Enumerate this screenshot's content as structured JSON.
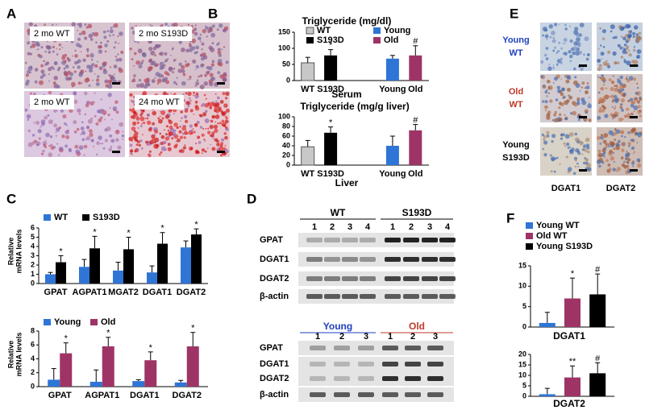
{
  "panel_labels": [
    "A",
    "B",
    "C",
    "D",
    "E",
    "F"
  ],
  "panel_a": {
    "tiles": [
      "2 mo WT",
      "2 mo S193D",
      "2 mo WT",
      "24 mo WT"
    ]
  },
  "panel_d": {
    "blots": [
      {
        "groups": [
          "WT",
          "S193D"
        ],
        "lanes": [
          "1",
          "2",
          "3",
          "4",
          "1",
          "2",
          "3",
          "4"
        ],
        "rows": [
          "GPAT",
          "DGAT1",
          "DGAT2",
          "β-actin"
        ]
      },
      {
        "groups": [
          "Young",
          "Old"
        ],
        "lanes": [
          "1",
          "2",
          "3",
          "1",
          "2",
          "3"
        ],
        "rows": [
          "GPAT",
          "DGAT1",
          "DGAT2",
          "β-actin"
        ]
      }
    ]
  },
  "panel_e": {
    "rows": [
      [
        "Young",
        "WT"
      ],
      [
        "Old",
        "WT"
      ],
      [
        "Young",
        "S193D"
      ]
    ],
    "columns": [
      "DGAT1",
      "DGAT2"
    ]
  },
  "chart_data": [
    {
      "type": "bar",
      "title": "Triglyceride (mg/dl)",
      "xlabel": "Serum",
      "categories": [
        "WT",
        "S193D",
        "Young",
        "Old"
      ],
      "values": [
        55,
        78,
        68,
        78
      ],
      "errors": [
        17,
        18,
        10,
        30
      ],
      "colors": [
        "#c8c8c8",
        "#000000",
        "#2e75d6",
        "#9e3465"
      ],
      "annotations": [
        null,
        "*",
        null,
        "#"
      ],
      "ylim": [
        0,
        150
      ],
      "yticks": [
        0,
        50,
        100,
        150
      ]
    },
    {
      "type": "bar",
      "title": "Triglyceride (mg/g liver)",
      "xlabel": "Liver",
      "categories": [
        "WT",
        "S193D",
        "Young",
        "Old"
      ],
      "values": [
        38,
        67,
        40,
        72
      ],
      "errors": [
        13,
        12,
        20,
        12
      ],
      "colors": [
        "#c8c8c8",
        "#000000",
        "#2e75d6",
        "#9e3465"
      ],
      "annotations": [
        null,
        "*",
        null,
        "#"
      ],
      "ylim": [
        0,
        100
      ],
      "yticks": [
        0,
        20,
        40,
        60,
        80,
        100
      ]
    },
    {
      "type": "bar",
      "ylabel": [
        "Relative",
        "mRNA levels"
      ],
      "categories": [
        "GPAT",
        "AGPAT1",
        "MGAT2",
        "DGAT1",
        "DGAT2"
      ],
      "series": [
        {
          "name": "WT",
          "color": "#2e75d6",
          "values": [
            1.0,
            1.8,
            1.4,
            1.2,
            3.9
          ],
          "errors": [
            0.2,
            0.8,
            0.9,
            0.7,
            0.7
          ]
        },
        {
          "name": "S193D",
          "color": "#000000",
          "values": [
            2.3,
            3.8,
            3.7,
            4.3,
            5.3
          ],
          "errors": [
            0.7,
            1.3,
            1.3,
            1.2,
            0.6
          ],
          "annotations": [
            "*",
            "*",
            "*",
            "*",
            "*"
          ]
        }
      ],
      "ylim": [
        0,
        6
      ],
      "yticks": [
        0,
        1,
        2,
        3,
        4,
        5,
        6
      ]
    },
    {
      "type": "bar",
      "ylabel": [
        "Relative",
        "mRNA levels"
      ],
      "categories": [
        "GPAT",
        "AGPAT1",
        "DGAT1",
        "DGAT2"
      ],
      "series": [
        {
          "name": "Young",
          "color": "#2e75d6",
          "values": [
            1.0,
            0.7,
            0.8,
            0.6
          ],
          "errors": [
            1.6,
            1.7,
            0.2,
            0.3
          ]
        },
        {
          "name": "Old",
          "color": "#9e3465",
          "values": [
            4.8,
            5.8,
            3.8,
            5.8
          ],
          "errors": [
            1.5,
            1.3,
            1.2,
            2.0
          ],
          "annotations": [
            "*",
            "*",
            "*",
            "*"
          ]
        }
      ],
      "ylim": [
        0,
        8
      ],
      "yticks": [
        0,
        2,
        4,
        6,
        8
      ]
    },
    {
      "type": "bar",
      "xlabel": "DGAT1",
      "categories": [
        "Young WT",
        "Old WT",
        "Young S193D"
      ],
      "values": [
        1,
        7,
        8
      ],
      "errors": [
        2.6,
        5,
        5
      ],
      "colors": [
        "#2e75d6",
        "#9e3465",
        "#000000"
      ],
      "annotations": [
        null,
        "*",
        "#"
      ],
      "ylim": [
        0,
        15
      ],
      "yticks": [
        0,
        5,
        10,
        15
      ]
    },
    {
      "type": "bar",
      "xlabel": "DGAT2",
      "values": [
        1,
        9,
        11
      ],
      "errors": [
        2.8,
        5.5,
        5
      ],
      "colors": [
        "#2e75d6",
        "#9e3465",
        "#000000"
      ],
      "annotations": [
        null,
        "**",
        "#"
      ],
      "ylim": [
        0,
        20
      ],
      "yticks": [
        0,
        5,
        10,
        15,
        20
      ]
    }
  ]
}
